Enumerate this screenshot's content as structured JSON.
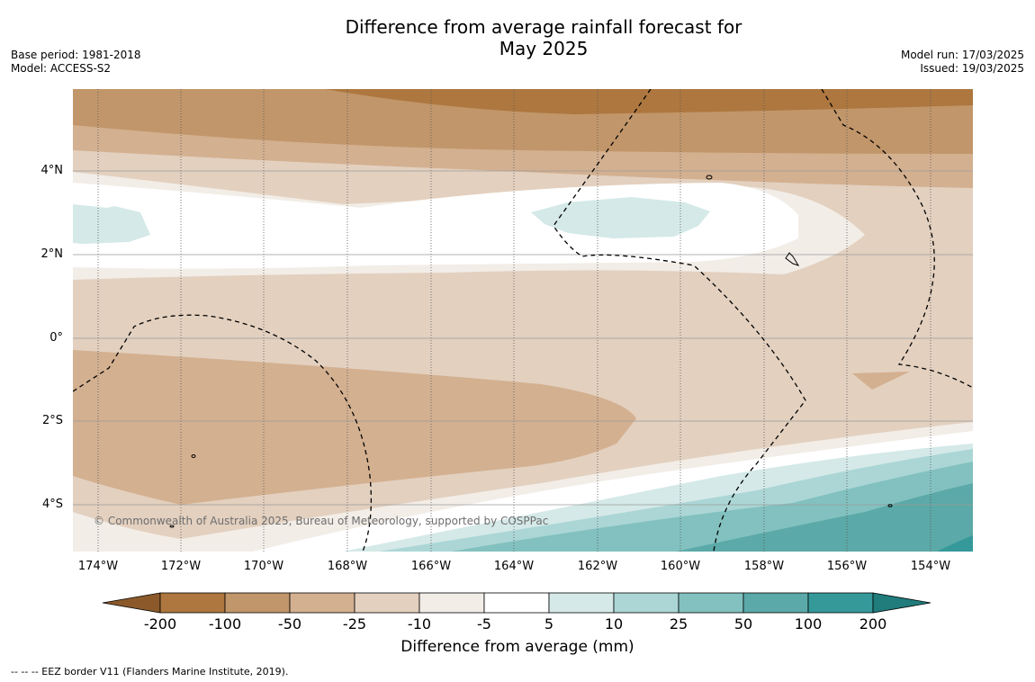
{
  "title": "Difference from average rainfall forecast for\nMay 2025",
  "left_info": "Base period: 1981-2018\nModel: ACCESS-S2",
  "right_info": "Model run: 17/03/2025\nIssued: 19/03/2025",
  "copyright": "© Commonwealth of Australia 2025, Bureau of Meteorology, supported by COSPPac",
  "latitude_labels": [
    "4°N",
    "2°N",
    "0°",
    "2°S",
    "4°S"
  ],
  "longitude_labels": [
    "174°W",
    "172°W",
    "170°W",
    "168°W",
    "166°W",
    "164°W",
    "162°W",
    "160°W",
    "158°W",
    "156°W",
    "154°W"
  ],
  "colorbar": {
    "title": "Difference from average (mm)",
    "tick_labels": [
      "-200",
      "-100",
      "-50",
      "-25",
      "-10",
      "-5",
      "5",
      "10",
      "25",
      "50",
      "100",
      "200"
    ],
    "colors": [
      "#8c5a2a",
      "#ad773f",
      "#c1966a",
      "#d3b090",
      "#e3d0bf",
      "#f2ede7",
      "#ffffff",
      "#d4e9e8",
      "#acd6d6",
      "#82c1bf",
      "#5ba9a8",
      "#35999a",
      "#217c7c"
    ]
  },
  "footnote": "--  --  -- EEZ border V11 (Flanders Marine Institute, 2019).",
  "colors": {
    "gridline": "#9a9a9a",
    "eez_border": "#000000"
  }
}
